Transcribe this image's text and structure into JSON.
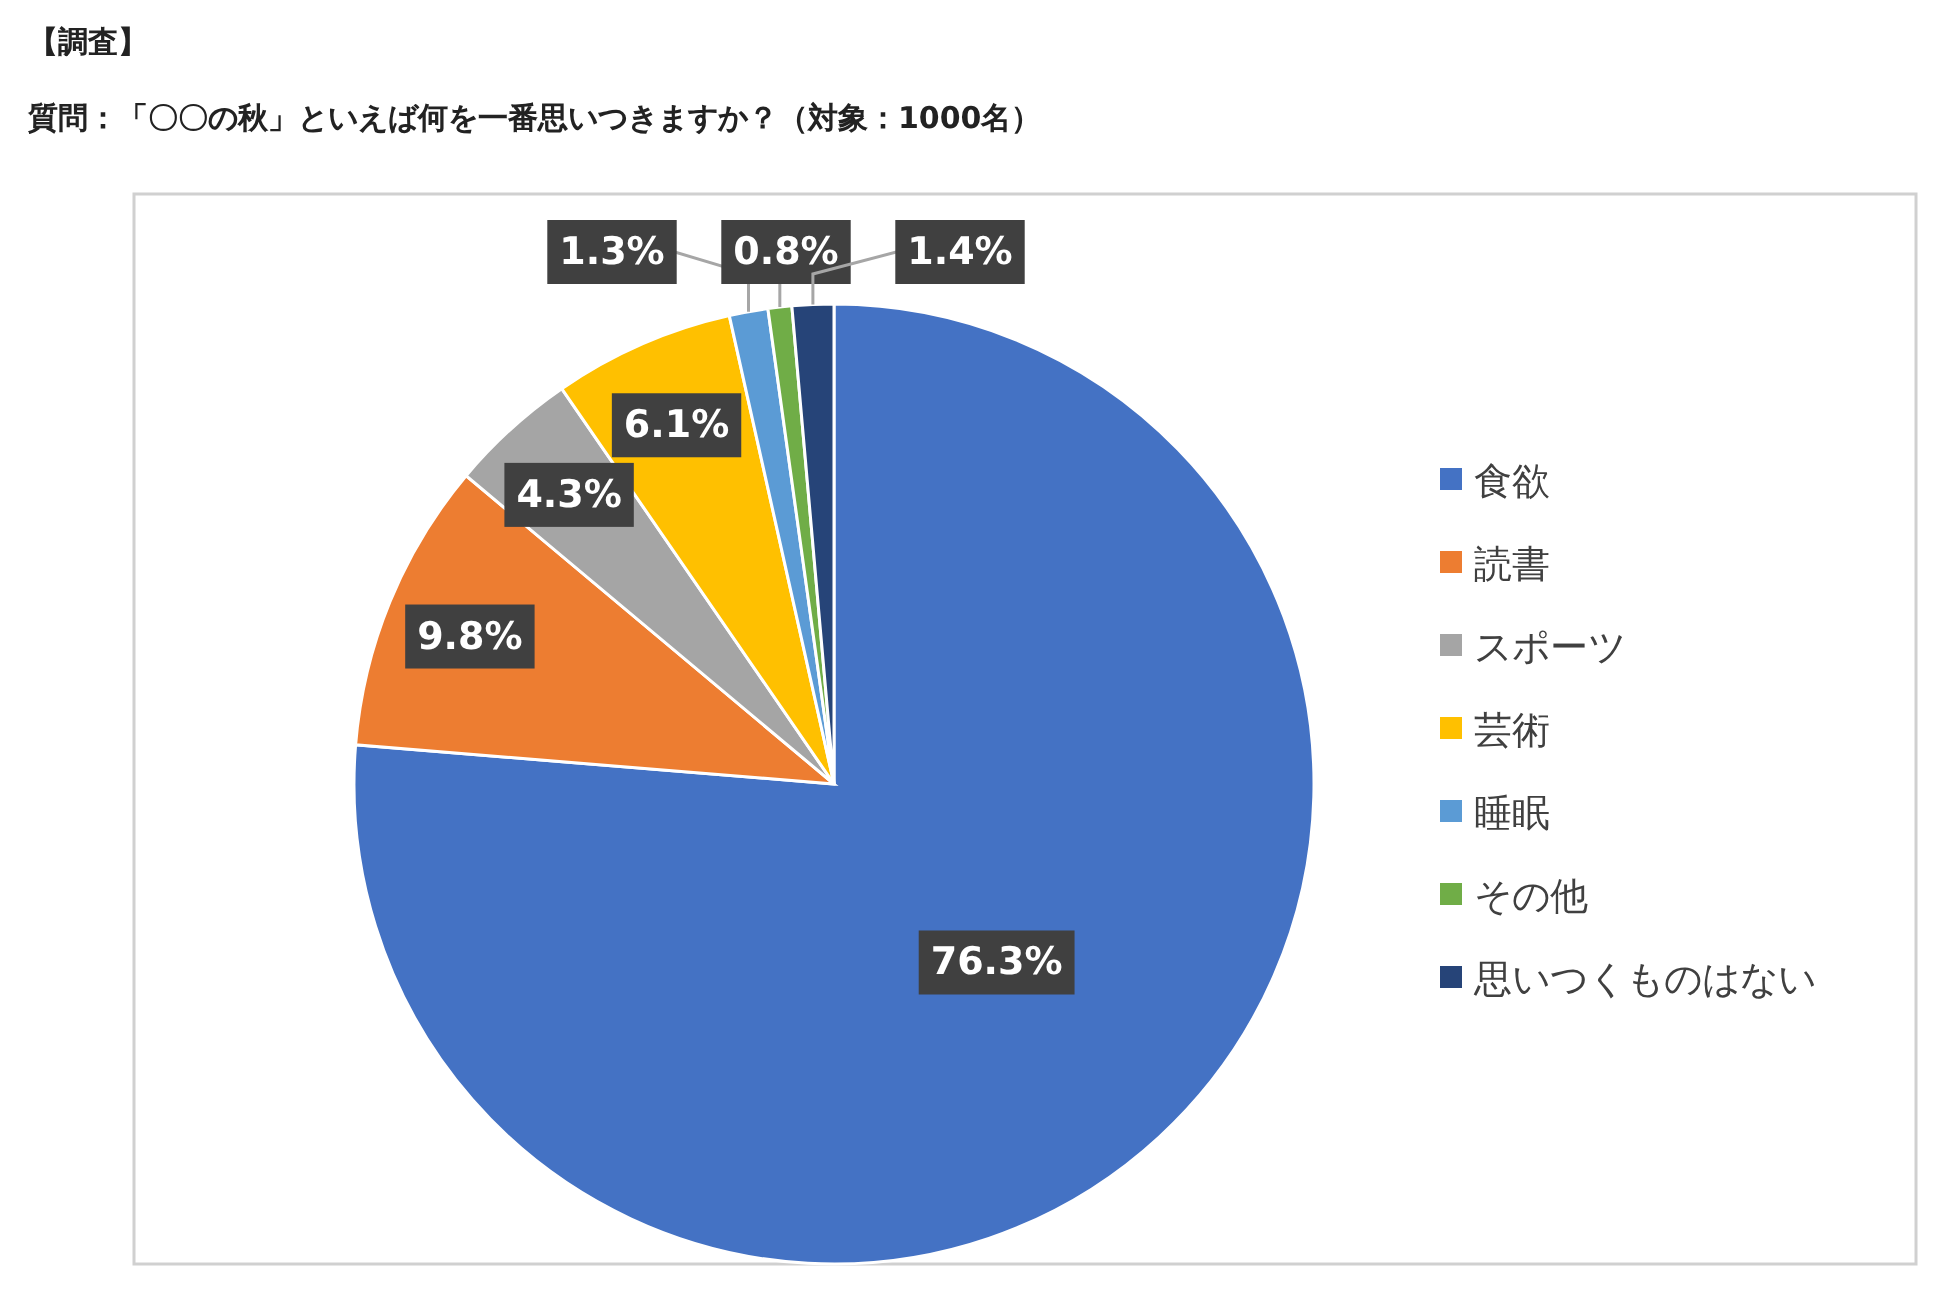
{
  "chart_data": {
    "type": "pie",
    "title": "【調査】",
    "subtitle": "質問：「〇〇の秋」といえば何を一番思いつきますか？（対象：1000名）",
    "categories": [
      "食欲",
      "読書",
      "スポーツ",
      "芸術",
      "睡眠",
      "その他",
      "思いつくものはない"
    ],
    "values": [
      76.3,
      9.8,
      4.3,
      6.1,
      1.3,
      0.8,
      1.4
    ],
    "colors": [
      "#4472c4",
      "#ed7d31",
      "#a5a5a5",
      "#ffc000",
      "#5b9bd5",
      "#70ad47",
      "#264478"
    ],
    "value_labels": [
      "76.3%",
      "9.8%",
      "4.3%",
      "6.1%",
      "1.3%",
      "0.8%",
      "1.4%"
    ],
    "legend": "right"
  }
}
